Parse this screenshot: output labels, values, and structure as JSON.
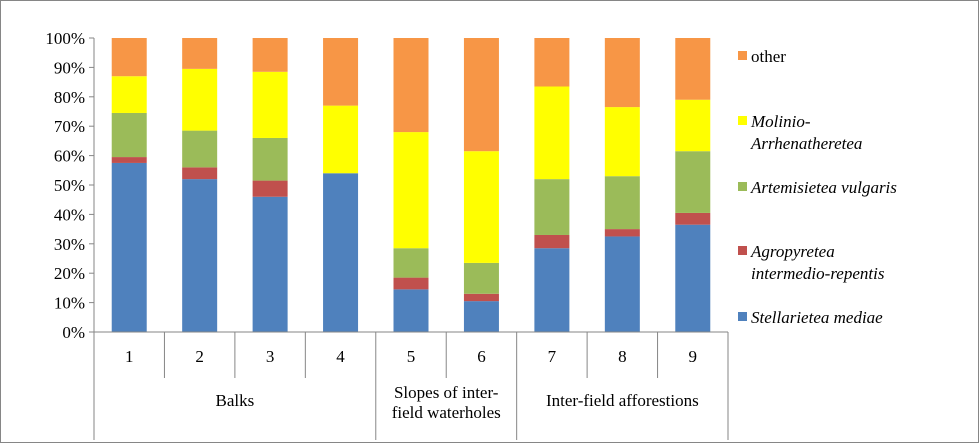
{
  "chart_data": {
    "type": "bar",
    "stacked": true,
    "percent": true,
    "categories": [
      "1",
      "2",
      "3",
      "4",
      "5",
      "6",
      "7",
      "8",
      "9"
    ],
    "groups": [
      {
        "label": [
          "Balks"
        ],
        "categories": [
          "1",
          "2",
          "3",
          "4"
        ]
      },
      {
        "label": [
          "Slopes of inter-",
          "field waterholes"
        ],
        "categories": [
          "5",
          "6"
        ]
      },
      {
        "label": [
          "Inter-field afforestions"
        ],
        "categories": [
          "7",
          "8",
          "9"
        ]
      }
    ],
    "ylim": [
      0,
      100
    ],
    "yticks": [
      "0%",
      "10%",
      "20%",
      "30%",
      "40%",
      "50%",
      "60%",
      "70%",
      "80%",
      "90%",
      "100%"
    ],
    "grid": false,
    "legend_position": "right",
    "series": [
      {
        "name": "Stellarietea mediae",
        "legend_lines": [
          "Stellarietea mediae"
        ],
        "italic": true,
        "color": "#4f81bd",
        "values": [
          57.5,
          52,
          46,
          54,
          14.5,
          10.5,
          28.5,
          32.5,
          36.5
        ]
      },
      {
        "name": "Agropyretea intermedio-repentis",
        "legend_lines": [
          "Agropyretea",
          "intermedio-repentis"
        ],
        "italic": true,
        "color": "#c0504d",
        "values": [
          2,
          4,
          5.5,
          0,
          4,
          2.5,
          4.5,
          2.5,
          4
        ]
      },
      {
        "name": "Artemisietea vulgaris",
        "legend_lines": [
          "Artemisietea vulgaris"
        ],
        "italic": true,
        "color": "#9bbb59",
        "values": [
          15,
          12.5,
          14.5,
          0,
          10,
          10.5,
          19,
          18,
          21
        ]
      },
      {
        "name": "Molinio-Arrhenatheretea",
        "legend_lines": [
          "Molinio-",
          "Arrhenatheretea"
        ],
        "italic": true,
        "color": "#ffff00",
        "values": [
          12.5,
          21,
          22.5,
          23,
          39.5,
          38,
          31.5,
          23.5,
          17.5
        ]
      },
      {
        "name": "other",
        "legend_lines": [
          "other"
        ],
        "italic": false,
        "color": "#f79646",
        "values": [
          13,
          10.5,
          11.5,
          23,
          32,
          38.5,
          16.5,
          23.5,
          21
        ]
      }
    ]
  }
}
